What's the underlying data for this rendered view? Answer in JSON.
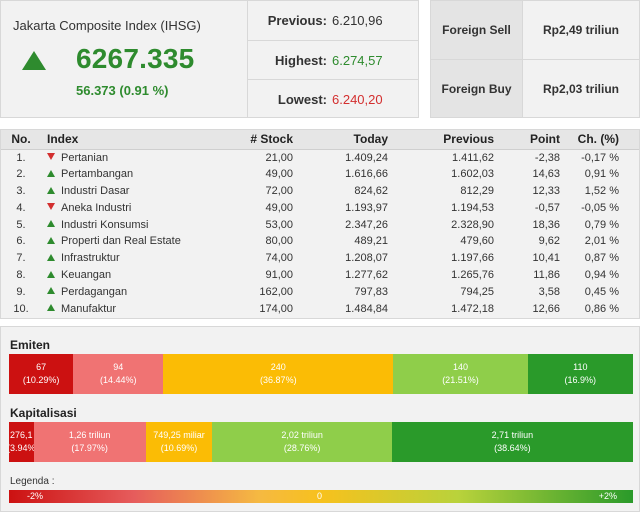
{
  "index": {
    "name": "Jakarta Composite Index (IHSG)",
    "value": "6267.335",
    "change": "56.373 (0.91 %)",
    "direction": "up"
  },
  "stats": {
    "previous_label": "Previous:",
    "previous_value": "6.210,96",
    "highest_label": "Highest:",
    "highest_value": "6.274,57",
    "lowest_label": "Lowest:",
    "lowest_value": "6.240,20"
  },
  "foreign": {
    "sell_label": "Foreign Sell",
    "sell_value": "Rp2,49 triliun",
    "buy_label": "Foreign Buy",
    "buy_value": "Rp2,03 triliun"
  },
  "table": {
    "headers": [
      "No.",
      "Index",
      "# Stock",
      "Today",
      "Previous",
      "Point",
      "Ch. (%)"
    ],
    "rows": [
      {
        "no": "1.",
        "dir": "down",
        "name": "Pertanian",
        "stock": "21,00",
        "today": "1.409,24",
        "previous": "1.411,62",
        "point": "-2,38",
        "ch": "-0,17 %"
      },
      {
        "no": "2.",
        "dir": "up",
        "name": "Pertambangan",
        "stock": "49,00",
        "today": "1.616,66",
        "previous": "1.602,03",
        "point": "14,63",
        "ch": "0,91 %"
      },
      {
        "no": "3.",
        "dir": "up",
        "name": "Industri Dasar",
        "stock": "72,00",
        "today": "824,62",
        "previous": "812,29",
        "point": "12,33",
        "ch": "1,52 %"
      },
      {
        "no": "4.",
        "dir": "down",
        "name": "Aneka Industri",
        "stock": "49,00",
        "today": "1.193,97",
        "previous": "1.194,53",
        "point": "-0,57",
        "ch": "-0,05 %"
      },
      {
        "no": "5.",
        "dir": "up",
        "name": "Industri Konsumsi",
        "stock": "53,00",
        "today": "2.347,26",
        "previous": "2.328,90",
        "point": "18,36",
        "ch": "0,79 %"
      },
      {
        "no": "6.",
        "dir": "up",
        "name": "Properti dan Real Estate",
        "stock": "80,00",
        "today": "489,21",
        "previous": "479,60",
        "point": "9,62",
        "ch": "2,01 %"
      },
      {
        "no": "7.",
        "dir": "up",
        "name": "Infrastruktur",
        "stock": "74,00",
        "today": "1.208,07",
        "previous": "1.197,66",
        "point": "10,41",
        "ch": "0,87 %"
      },
      {
        "no": "8.",
        "dir": "up",
        "name": "Keuangan",
        "stock": "91,00",
        "today": "1.277,62",
        "previous": "1.265,76",
        "point": "11,86",
        "ch": "0,94 %"
      },
      {
        "no": "9.",
        "dir": "up",
        "name": "Perdagangan",
        "stock": "162,00",
        "today": "797,83",
        "previous": "794,25",
        "point": "3,58",
        "ch": "0,45 %"
      },
      {
        "no": "10.",
        "dir": "up",
        "name": "Manufaktur",
        "stock": "174,00",
        "today": "1.484,84",
        "previous": "1.472,18",
        "point": "12,66",
        "ch": "0,86 %"
      }
    ]
  },
  "emiten": {
    "title": "Emiten",
    "segments": [
      {
        "line1": "67",
        "line2": "(10.29%)",
        "share": 0.1029,
        "color": "#cc1111"
      },
      {
        "line1": "94",
        "line2": "(14.44%)",
        "share": 0.1444,
        "color": "#f07373"
      },
      {
        "line1": "240",
        "line2": "(36.87%)",
        "share": 0.3687,
        "color": "#fbbc05"
      },
      {
        "line1": "140",
        "line2": "(21.51%)",
        "share": 0.2151,
        "color": "#8fce4a"
      },
      {
        "line1": "110",
        "line2": "(16.9%)",
        "share": 0.169,
        "color": "#2a9a2a"
      }
    ]
  },
  "kapitalisasi": {
    "title": "Kapitalisasi",
    "segments": [
      {
        "line1": "276,1",
        "line2": "(3.94%",
        "share": 0.0394,
        "color": "#cc1111"
      },
      {
        "line1": "1,26 triliun",
        "line2": "(17.97%)",
        "share": 0.1797,
        "color": "#f07373"
      },
      {
        "line1": "749,25 miliar",
        "line2": "(10.69%)",
        "share": 0.1069,
        "color": "#fbbc05"
      },
      {
        "line1": "2,02 triliun",
        "line2": "(28.76%)",
        "share": 0.2876,
        "color": "#8fce4a"
      },
      {
        "line1": "2,71 triliun",
        "line2": "(38.64%)",
        "share": 0.3864,
        "color": "#2a9a2a"
      }
    ]
  },
  "legend": {
    "title": "Legenda :",
    "min_label": "-2%",
    "mid_label": "0",
    "max_label": "+2%"
  },
  "colors": {
    "up": "#2e8b2e",
    "down": "#d32f2f"
  }
}
